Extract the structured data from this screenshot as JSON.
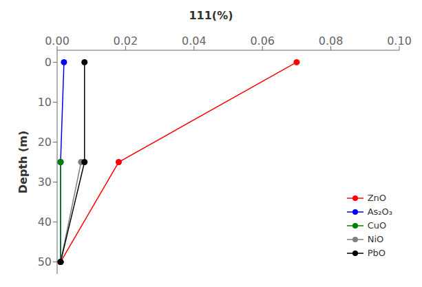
{
  "chart_data": {
    "type": "line",
    "title": "111(%)",
    "ylabel": "Depth (m)",
    "xlim": [
      0.0,
      0.1
    ],
    "ylim": [
      53,
      -3
    ],
    "xticks": [
      {
        "value": 0.0,
        "label": "0.00"
      },
      {
        "value": 0.02,
        "label": "0.02"
      },
      {
        "value": 0.04,
        "label": "0.04"
      },
      {
        "value": 0.06,
        "label": "0.06"
      },
      {
        "value": 0.08,
        "label": "0.08"
      },
      {
        "value": 0.1,
        "label": "0.10"
      }
    ],
    "yticks": [
      0,
      10,
      20,
      30,
      40,
      50
    ],
    "grid": false,
    "legend": "lower right",
    "marker": "circle",
    "series": [
      {
        "name": "ZnO",
        "color": "#ff0000",
        "x": [
          0.07,
          0.018,
          0.001
        ],
        "values": [
          0,
          25,
          50
        ]
      },
      {
        "name": "As₂O₃",
        "color": "#0000ff",
        "x": [
          0.002,
          0.001,
          0.001
        ],
        "values": [
          0,
          25,
          50
        ]
      },
      {
        "name": "CuO",
        "color": "#008000",
        "x": [
          0.001,
          0.001
        ],
        "values": [
          25,
          50
        ]
      },
      {
        "name": "NiO",
        "color": "#808080",
        "x": [
          0.007,
          0.001
        ],
        "values": [
          25,
          50
        ]
      },
      {
        "name": "PbO",
        "color": "#000000",
        "x": [
          0.008,
          0.008,
          0.001
        ],
        "values": [
          0,
          25,
          50
        ]
      }
    ]
  }
}
